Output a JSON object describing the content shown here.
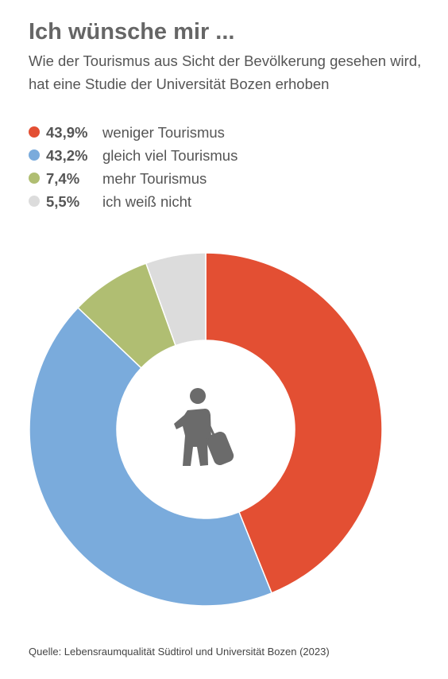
{
  "title": "Ich wünsche mir ...",
  "subtitle": "Wie der Tourismus aus Sicht der Bevölkerung gesehen wird, hat eine Studie der Universität Bozen erhoben",
  "source": "Quelle: Lebensraumqualität Südtirol und Universität Bozen (2023)",
  "center_icon": "traveler-with-suitcase-icon",
  "chart_data": {
    "type": "pie",
    "donut": true,
    "title": "Ich wünsche mir ...",
    "slices": [
      {
        "label": "weniger Tourismus",
        "value": 43.9,
        "value_label": "43,9%",
        "color": "#e34f33"
      },
      {
        "label": "gleich viel Tourismus",
        "value": 43.2,
        "value_label": "43,2%",
        "color": "#7aabdc"
      },
      {
        "label": "mehr Tourismus",
        "value": 7.4,
        "value_label": "7,4%",
        "color": "#b0be72"
      },
      {
        "label": "ich weiß nicht",
        "value": 5.5,
        "value_label": "5,5%",
        "color": "#dcdcdc"
      }
    ]
  }
}
